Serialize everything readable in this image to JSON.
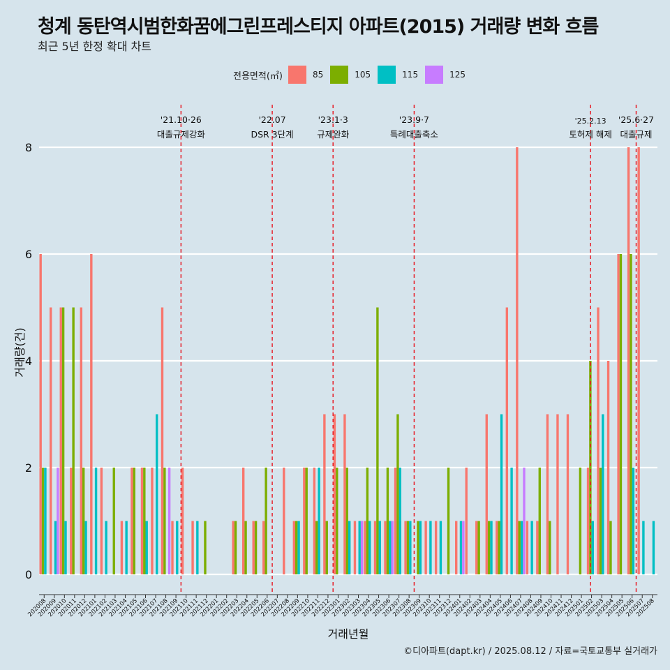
{
  "title": "청계 동탄역시범한화꿈에그린프레스티지 아파트(2015) 거래량 변화 흐름",
  "subtitle": "최근 5년 한정 확대 차트",
  "caption": "©디아파트(dapt.kr) / 2025.08.12 / 자료=국토교통부 실거래가",
  "legend": {
    "title": "전용면적(㎡)",
    "items": [
      {
        "label": "85",
        "color": "#f8766d"
      },
      {
        "label": "105",
        "color": "#7cae00"
      },
      {
        "label": "115",
        "color": "#00bfc4"
      },
      {
        "label": "125",
        "color": "#c77cff"
      }
    ]
  },
  "chart_data": {
    "type": "bar",
    "xlabel": "거래년월",
    "ylabel": "거래량(건)",
    "ylim": [
      0,
      8
    ],
    "yticks": [
      0,
      2,
      4,
      6,
      8
    ],
    "grid": true,
    "legend_position": "top",
    "categories": [
      "202008",
      "202009",
      "202010",
      "202011",
      "202012",
      "202101",
      "202102",
      "202103",
      "202104",
      "202105",
      "202106",
      "202107",
      "202108",
      "202109",
      "202110",
      "202111",
      "202112",
      "202201",
      "202202",
      "202203",
      "202204",
      "202205",
      "202206",
      "202207",
      "202208",
      "202209",
      "202210",
      "202211",
      "202212",
      "202301",
      "202302",
      "202303",
      "202304",
      "202305",
      "202306",
      "202307",
      "202308",
      "202309",
      "202310",
      "202311",
      "202312",
      "202401",
      "202402",
      "202403",
      "202404",
      "202405",
      "202406",
      "202407",
      "202408",
      "202409",
      "202410",
      "202411",
      "202412",
      "202501",
      "202502",
      "202503",
      "202504",
      "202505",
      "202506",
      "202507",
      "202508"
    ],
    "series": [
      {
        "name": "85",
        "color": "#f8766d",
        "values": [
          6,
          5,
          5,
          2,
          5,
          6,
          2,
          0,
          1,
          2,
          2,
          2,
          5,
          1,
          2,
          1,
          0,
          0,
          0,
          1,
          2,
          1,
          1,
          0,
          2,
          1,
          2,
          2,
          3,
          3,
          3,
          1,
          1,
          1,
          1,
          2,
          1,
          0,
          1,
          1,
          0,
          1,
          2,
          1,
          3,
          1,
          5,
          8,
          1,
          1,
          3,
          3,
          3,
          0,
          2,
          5,
          4,
          6,
          8,
          8,
          0
        ]
      },
      {
        "name": "105",
        "color": "#7cae00",
        "values": [
          2,
          0,
          5,
          5,
          2,
          0,
          0,
          2,
          0,
          2,
          2,
          0,
          2,
          0,
          0,
          0,
          1,
          0,
          0,
          1,
          1,
          1,
          2,
          0,
          0,
          1,
          2,
          1,
          1,
          2,
          2,
          0,
          2,
          5,
          2,
          3,
          1,
          1,
          0,
          0,
          2,
          0,
          0,
          1,
          1,
          1,
          0,
          1,
          0,
          2,
          1,
          0,
          0,
          2,
          4,
          2,
          1,
          6,
          6,
          0,
          0
        ]
      },
      {
        "name": "115",
        "color": "#00bfc4",
        "values": [
          2,
          1,
          1,
          0,
          1,
          2,
          1,
          0,
          1,
          0,
          1,
          3,
          0,
          1,
          0,
          1,
          0,
          0,
          0,
          0,
          0,
          0,
          0,
          0,
          0,
          1,
          0,
          2,
          0,
          0,
          1,
          1,
          1,
          1,
          1,
          2,
          1,
          1,
          1,
          1,
          0,
          1,
          0,
          0,
          1,
          3,
          2,
          1,
          1,
          0,
          0,
          0,
          0,
          0,
          1,
          3,
          0,
          0,
          2,
          1,
          1
        ]
      },
      {
        "name": "125",
        "color": "#c77cff",
        "values": [
          0,
          2,
          0,
          0,
          0,
          0,
          0,
          0,
          0,
          0,
          0,
          0,
          2,
          0,
          0,
          0,
          0,
          0,
          0,
          0,
          0,
          0,
          0,
          0,
          0,
          0,
          0,
          0,
          0,
          0,
          0,
          1,
          0,
          0,
          1,
          0,
          0,
          0,
          0,
          0,
          0,
          1,
          0,
          0,
          0,
          0,
          0,
          2,
          0,
          0,
          0,
          0,
          0,
          0,
          0,
          0,
          0,
          0,
          0,
          0,
          0
        ]
      }
    ],
    "events": [
      {
        "date": "'21.10·26",
        "label": "대출규제강화",
        "after_index": 14.0
      },
      {
        "date": "'22.07",
        "label": "DSR 3단계",
        "after_index": 23.0
      },
      {
        "date": "'23.1·3",
        "label": "규제완화",
        "after_index": 29.0
      },
      {
        "date": "'23.9·7",
        "label": "특례대출축소",
        "after_index": 37.0
      },
      {
        "date": "'25.2.13",
        "label": "토허제 해제",
        "after_index": 54.4
      },
      {
        "date": "'25.6·27",
        "label": "대출규제",
        "after_index": 58.9
      }
    ]
  }
}
